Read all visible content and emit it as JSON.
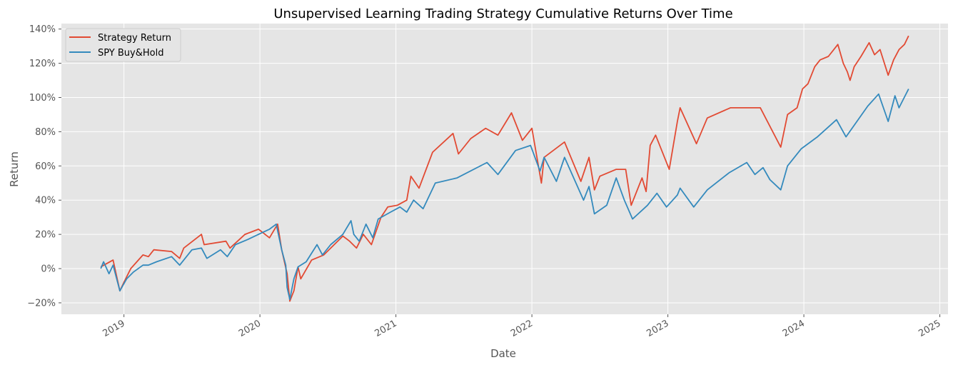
{
  "chart_data": {
    "type": "line",
    "title": "Unsupervised Learning Trading Strategy Cumulative Returns Over Time",
    "xlabel": "Date",
    "ylabel": "Return",
    "xlim": [
      2018.54,
      2025.06
    ],
    "ylim": [
      -26.7,
      143.2
    ],
    "x_ticks": [
      {
        "value": 2019,
        "label": "2019"
      },
      {
        "value": 2020,
        "label": "2020"
      },
      {
        "value": 2021,
        "label": "2021"
      },
      {
        "value": 2022,
        "label": "2022"
      },
      {
        "value": 2023,
        "label": "2023"
      },
      {
        "value": 2024,
        "label": "2024"
      },
      {
        "value": 2025,
        "label": "2025"
      }
    ],
    "y_ticks": [
      {
        "value": -20,
        "label": "−20%"
      },
      {
        "value": 0,
        "label": "0%"
      },
      {
        "value": 20,
        "label": "20%"
      },
      {
        "value": 40,
        "label": "40%"
      },
      {
        "value": 60,
        "label": "60%"
      },
      {
        "value": 80,
        "label": "80%"
      },
      {
        "value": 100,
        "label": "100%"
      },
      {
        "value": 120,
        "label": "120%"
      },
      {
        "value": 140,
        "label": "140%"
      }
    ],
    "grid": true,
    "legend_position": "top-left",
    "series": [
      {
        "name": "Strategy Return",
        "color": "#E24A33",
        "points": [
          [
            2018.83,
            1
          ],
          [
            2018.92,
            5
          ],
          [
            2018.97,
            -13
          ],
          [
            2019.0,
            -8
          ],
          [
            2019.05,
            0
          ],
          [
            2019.14,
            8
          ],
          [
            2019.18,
            7
          ],
          [
            2019.22,
            11
          ],
          [
            2019.35,
            10
          ],
          [
            2019.41,
            6
          ],
          [
            2019.44,
            12
          ],
          [
            2019.57,
            20
          ],
          [
            2019.59,
            14
          ],
          [
            2019.75,
            16
          ],
          [
            2019.78,
            12
          ],
          [
            2019.89,
            20
          ],
          [
            2019.99,
            23
          ],
          [
            2020.07,
            18
          ],
          [
            2020.13,
            26
          ],
          [
            2020.16,
            11
          ],
          [
            2020.2,
            -3
          ],
          [
            2020.22,
            -19
          ],
          [
            2020.25,
            -13
          ],
          [
            2020.28,
            1
          ],
          [
            2020.3,
            -6
          ],
          [
            2020.38,
            5
          ],
          [
            2020.47,
            8
          ],
          [
            2020.61,
            19
          ],
          [
            2020.66,
            16
          ],
          [
            2020.71,
            12
          ],
          [
            2020.76,
            20
          ],
          [
            2020.82,
            14
          ],
          [
            2020.89,
            30
          ],
          [
            2020.94,
            36
          ],
          [
            2021.01,
            37
          ],
          [
            2021.08,
            40
          ],
          [
            2021.11,
            54
          ],
          [
            2021.17,
            47
          ],
          [
            2021.27,
            68
          ],
          [
            2021.42,
            79
          ],
          [
            2021.46,
            67
          ],
          [
            2021.55,
            76
          ],
          [
            2021.66,
            82
          ],
          [
            2021.75,
            78
          ],
          [
            2021.85,
            91
          ],
          [
            2021.93,
            75
          ],
          [
            2022.0,
            82
          ],
          [
            2022.07,
            50
          ],
          [
            2022.09,
            65
          ],
          [
            2022.24,
            74
          ],
          [
            2022.36,
            51
          ],
          [
            2022.42,
            65
          ],
          [
            2022.46,
            46
          ],
          [
            2022.5,
            54
          ],
          [
            2022.62,
            58
          ],
          [
            2022.69,
            58
          ],
          [
            2022.73,
            37
          ],
          [
            2022.81,
            53
          ],
          [
            2022.84,
            45
          ],
          [
            2022.87,
            72
          ],
          [
            2022.91,
            78
          ],
          [
            2023.01,
            58
          ],
          [
            2023.07,
            86
          ],
          [
            2023.09,
            94
          ],
          [
            2023.21,
            73
          ],
          [
            2023.29,
            88
          ],
          [
            2023.46,
            94
          ],
          [
            2023.68,
            94
          ],
          [
            2023.83,
            71
          ],
          [
            2023.88,
            90
          ],
          [
            2023.95,
            94
          ],
          [
            2023.99,
            105
          ],
          [
            2024.03,
            108
          ],
          [
            2024.08,
            118
          ],
          [
            2024.12,
            122
          ],
          [
            2024.18,
            124
          ],
          [
            2024.22,
            128
          ],
          [
            2024.25,
            131
          ],
          [
            2024.29,
            120
          ],
          [
            2024.32,
            115
          ],
          [
            2024.34,
            110
          ],
          [
            2024.37,
            118
          ],
          [
            2024.42,
            124
          ],
          [
            2024.48,
            132
          ],
          [
            2024.52,
            125
          ],
          [
            2024.56,
            128
          ],
          [
            2024.6,
            118
          ],
          [
            2024.62,
            113
          ],
          [
            2024.66,
            122
          ],
          [
            2024.7,
            128
          ],
          [
            2024.74,
            131
          ],
          [
            2024.77,
            136
          ]
        ]
      },
      {
        "name": "SPY Buy&Hold",
        "color": "#348ABD",
        "points": [
          [
            2018.83,
            0
          ],
          [
            2018.85,
            4
          ],
          [
            2018.89,
            -3
          ],
          [
            2018.92,
            2
          ],
          [
            2018.97,
            -13
          ],
          [
            2019.02,
            -6
          ],
          [
            2019.07,
            -2
          ],
          [
            2019.14,
            2
          ],
          [
            2019.18,
            2
          ],
          [
            2019.24,
            4
          ],
          [
            2019.35,
            7
          ],
          [
            2019.41,
            2
          ],
          [
            2019.5,
            11
          ],
          [
            2019.57,
            12
          ],
          [
            2019.61,
            6
          ],
          [
            2019.71,
            11
          ],
          [
            2019.76,
            7
          ],
          [
            2019.82,
            14
          ],
          [
            2019.91,
            17
          ],
          [
            2019.99,
            20
          ],
          [
            2020.07,
            23
          ],
          [
            2020.12,
            26
          ],
          [
            2020.16,
            11
          ],
          [
            2020.19,
            2
          ],
          [
            2020.2,
            -11
          ],
          [
            2020.22,
            -18
          ],
          [
            2020.25,
            -6
          ],
          [
            2020.28,
            1
          ],
          [
            2020.34,
            4
          ],
          [
            2020.42,
            14
          ],
          [
            2020.46,
            8
          ],
          [
            2020.52,
            14
          ],
          [
            2020.61,
            20
          ],
          [
            2020.67,
            28
          ],
          [
            2020.69,
            20
          ],
          [
            2020.73,
            16
          ],
          [
            2020.78,
            26
          ],
          [
            2020.83,
            18
          ],
          [
            2020.87,
            29
          ],
          [
            2020.96,
            33
          ],
          [
            2021.03,
            36
          ],
          [
            2021.08,
            33
          ],
          [
            2021.13,
            40
          ],
          [
            2021.2,
            35
          ],
          [
            2021.29,
            50
          ],
          [
            2021.45,
            53
          ],
          [
            2021.67,
            62
          ],
          [
            2021.75,
            55
          ],
          [
            2021.88,
            69
          ],
          [
            2021.99,
            72
          ],
          [
            2022.06,
            57
          ],
          [
            2022.09,
            65
          ],
          [
            2022.18,
            51
          ],
          [
            2022.24,
            65
          ],
          [
            2022.38,
            40
          ],
          [
            2022.42,
            48
          ],
          [
            2022.46,
            32
          ],
          [
            2022.55,
            37
          ],
          [
            2022.62,
            53
          ],
          [
            2022.68,
            40
          ],
          [
            2022.74,
            29
          ],
          [
            2022.85,
            37
          ],
          [
            2022.92,
            44
          ],
          [
            2022.99,
            36
          ],
          [
            2023.07,
            43
          ],
          [
            2023.09,
            47
          ],
          [
            2023.19,
            36
          ],
          [
            2023.29,
            46
          ],
          [
            2023.45,
            56
          ],
          [
            2023.58,
            62
          ],
          [
            2023.64,
            55
          ],
          [
            2023.7,
            59
          ],
          [
            2023.75,
            52
          ],
          [
            2023.83,
            46
          ],
          [
            2023.88,
            60
          ],
          [
            2023.98,
            70
          ],
          [
            2024.1,
            77
          ],
          [
            2024.24,
            87
          ],
          [
            2024.31,
            77
          ],
          [
            2024.47,
            95
          ],
          [
            2024.55,
            102
          ],
          [
            2024.62,
            86
          ],
          [
            2024.67,
            101
          ],
          [
            2024.7,
            94
          ],
          [
            2024.77,
            105
          ]
        ]
      }
    ]
  }
}
